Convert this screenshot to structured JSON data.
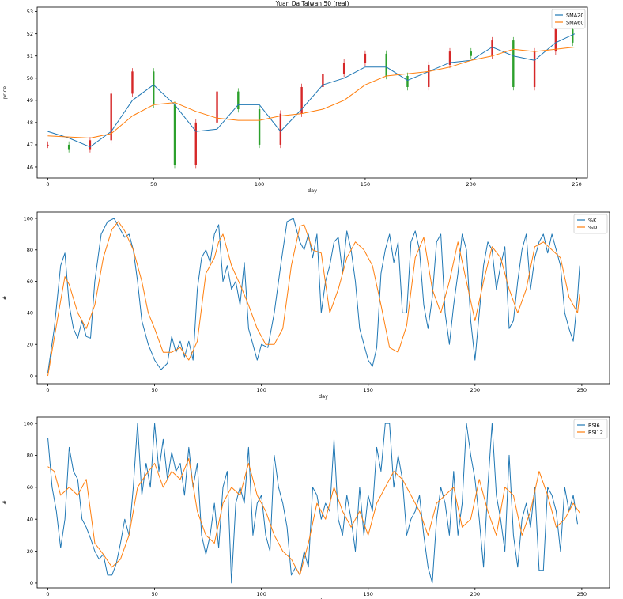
{
  "colors": {
    "series1": "#1f77b4",
    "series2": "#ff7f0e",
    "up": "#d62728",
    "down": "#2ca02c"
  },
  "chart_data": [
    {
      "type": "line",
      "name": "price-chart",
      "title": "Yuan Da Taiwan 50 (real)",
      "xlabel": "day",
      "ylabel": "price",
      "xlim": [
        -5,
        255
      ],
      "ylim": [
        45.5,
        53.2
      ],
      "xticks": [
        0,
        50,
        100,
        150,
        200,
        250
      ],
      "yticks": [
        46,
        47,
        48,
        49,
        50,
        51,
        52,
        53
      ],
      "legend": "top-right",
      "candles": {
        "x": [
          0,
          10,
          20,
          30,
          40,
          50,
          60,
          70,
          80,
          90,
          100,
          110,
          120,
          130,
          140,
          150,
          160,
          170,
          180,
          190,
          200,
          210,
          220,
          230,
          240,
          248
        ],
        "close": [
          47.0,
          46.8,
          47.2,
          49.3,
          50.3,
          48.8,
          46.1,
          48.0,
          49.4,
          48.6,
          47.0,
          48.4,
          49.6,
          50.2,
          50.7,
          51.1,
          50.1,
          49.6,
          50.6,
          51.2,
          51.0,
          51.7,
          49.6,
          51.2,
          52.2,
          51.6
        ]
      },
      "series": [
        {
          "name": "SMA20",
          "x": [
            0,
            10,
            20,
            30,
            40,
            50,
            60,
            70,
            80,
            90,
            100,
            110,
            120,
            130,
            140,
            150,
            160,
            170,
            180,
            190,
            200,
            210,
            220,
            230,
            240,
            249
          ],
          "values": [
            47.6,
            47.3,
            46.9,
            47.6,
            49.0,
            49.7,
            48.8,
            47.6,
            47.7,
            48.8,
            48.8,
            47.6,
            48.6,
            49.7,
            50.0,
            50.5,
            50.5,
            49.9,
            50.3,
            50.7,
            50.8,
            51.4,
            51.0,
            50.8,
            51.6,
            52.0
          ]
        },
        {
          "name": "SMA60",
          "x": [
            0,
            20,
            30,
            40,
            50,
            60,
            70,
            80,
            90,
            100,
            110,
            120,
            130,
            140,
            150,
            160,
            170,
            180,
            190,
            200,
            210,
            220,
            230,
            240,
            249
          ],
          "values": [
            47.4,
            47.3,
            47.5,
            48.3,
            48.8,
            48.9,
            48.5,
            48.2,
            48.1,
            48.1,
            48.3,
            48.4,
            48.6,
            49.0,
            49.7,
            50.1,
            50.2,
            50.3,
            50.5,
            50.8,
            51.0,
            51.3,
            51.2,
            51.3,
            51.4
          ]
        }
      ]
    },
    {
      "type": "line",
      "name": "kd-chart",
      "xlabel": "day",
      "ylabel": "#",
      "xlim": [
        -5,
        263
      ],
      "ylim": [
        -5,
        104
      ],
      "xticks": [
        0,
        50,
        100,
        150,
        200,
        250
      ],
      "yticks": [
        0,
        20,
        40,
        60,
        80,
        100
      ],
      "legend": "top-right",
      "series": [
        {
          "name": "%K",
          "x": [
            0,
            3,
            6,
            8,
            10,
            12,
            14,
            16,
            18,
            20,
            22,
            25,
            28,
            31,
            33,
            36,
            38,
            40,
            42,
            44,
            47,
            50,
            53,
            56,
            58,
            60,
            62,
            64,
            66,
            68,
            70,
            72,
            74,
            76,
            78,
            80,
            82,
            84,
            86,
            88,
            90,
            92,
            94,
            96,
            98,
            100,
            103,
            106,
            109,
            112,
            115,
            118,
            120,
            122,
            124,
            126,
            128,
            130,
            132,
            134,
            136,
            138,
            140,
            142,
            144,
            146,
            148,
            150,
            152,
            154,
            156,
            158,
            160,
            162,
            164,
            166,
            168,
            170,
            172,
            174,
            176,
            178,
            180,
            182,
            184,
            186,
            188,
            190,
            192,
            194,
            196,
            198,
            200,
            202,
            204,
            206,
            208,
            210,
            212,
            214,
            216,
            218,
            220,
            222,
            224,
            226,
            228,
            230,
            232,
            234,
            236,
            238,
            240,
            242,
            244,
            246,
            248,
            249
          ],
          "values": [
            2,
            30,
            70,
            78,
            45,
            30,
            24,
            35,
            25,
            24,
            60,
            90,
            98,
            100,
            95,
            88,
            90,
            80,
            60,
            35,
            20,
            10,
            4,
            8,
            25,
            15,
            22,
            12,
            22,
            10,
            55,
            75,
            80,
            72,
            90,
            96,
            60,
            70,
            55,
            60,
            45,
            72,
            30,
            20,
            10,
            20,
            18,
            40,
            70,
            98,
            100,
            85,
            80,
            90,
            75,
            90,
            40,
            60,
            70,
            85,
            88,
            65,
            92,
            80,
            60,
            30,
            20,
            10,
            6,
            18,
            65,
            80,
            90,
            72,
            85,
            40,
            40,
            85,
            92,
            80,
            45,
            30,
            50,
            85,
            90,
            40,
            20,
            45,
            65,
            90,
            80,
            35,
            10,
            40,
            70,
            85,
            80,
            55,
            70,
            82,
            30,
            35,
            60,
            80,
            90,
            55,
            75,
            85,
            90,
            78,
            90,
            80,
            70,
            40,
            30,
            22,
            50,
            70
          ]
        },
        {
          "name": "%D",
          "x": [
            0,
            5,
            8,
            10,
            14,
            18,
            22,
            26,
            30,
            33,
            36,
            40,
            44,
            47,
            50,
            54,
            58,
            62,
            66,
            70,
            74,
            78,
            80,
            82,
            86,
            90,
            94,
            98,
            102,
            106,
            110,
            114,
            118,
            120,
            124,
            128,
            132,
            136,
            140,
            144,
            148,
            152,
            156,
            160,
            164,
            168,
            172,
            176,
            180,
            184,
            188,
            192,
            196,
            200,
            204,
            208,
            212,
            216,
            220,
            224,
            228,
            232,
            236,
            240,
            244,
            248,
            249
          ],
          "values": [
            0,
            40,
            63,
            58,
            40,
            30,
            45,
            75,
            93,
            98,
            92,
            80,
            60,
            40,
            30,
            15,
            15,
            18,
            10,
            22,
            65,
            75,
            85,
            90,
            70,
            58,
            45,
            30,
            20,
            20,
            30,
            70,
            95,
            96,
            80,
            78,
            40,
            55,
            75,
            85,
            80,
            70,
            45,
            18,
            15,
            32,
            75,
            88,
            55,
            40,
            60,
            85,
            60,
            35,
            60,
            82,
            75,
            55,
            40,
            55,
            82,
            85,
            80,
            75,
            50,
            40,
            52
          ]
        }
      ]
    },
    {
      "type": "line",
      "name": "rsi-chart",
      "xlabel": "day",
      "ylabel": "#",
      "xlim": [
        -5,
        263
      ],
      "ylim": [
        -3,
        104
      ],
      "xticks": [
        0,
        50,
        100,
        150,
        200,
        250
      ],
      "yticks": [
        0,
        20,
        40,
        60,
        80,
        100
      ],
      "legend": "top-right",
      "series": [
        {
          "name": "RSI6",
          "x": [
            0,
            2,
            4,
            6,
            8,
            10,
            12,
            14,
            16,
            18,
            20,
            22,
            24,
            26,
            28,
            30,
            32,
            34,
            36,
            38,
            40,
            42,
            44,
            46,
            48,
            50,
            52,
            54,
            56,
            58,
            60,
            62,
            64,
            66,
            68,
            70,
            72,
            74,
            76,
            78,
            80,
            82,
            84,
            86,
            88,
            90,
            92,
            94,
            96,
            98,
            100,
            102,
            104,
            106,
            108,
            110,
            112,
            114,
            116,
            118,
            120,
            122,
            124,
            126,
            128,
            130,
            132,
            134,
            136,
            138,
            140,
            142,
            144,
            146,
            148,
            150,
            152,
            154,
            156,
            158,
            160,
            162,
            164,
            166,
            168,
            170,
            172,
            174,
            176,
            178,
            180,
            182,
            184,
            186,
            188,
            190,
            192,
            194,
            196,
            198,
            200,
            202,
            204,
            206,
            208,
            210,
            212,
            214,
            216,
            218,
            220,
            222,
            224,
            226,
            228,
            230,
            232,
            234,
            236,
            238,
            240,
            242,
            244,
            246,
            248
          ],
          "values": [
            91,
            60,
            45,
            22,
            40,
            85,
            70,
            65,
            40,
            35,
            28,
            20,
            15,
            18,
            5,
            5,
            12,
            25,
            40,
            30,
            60,
            100,
            55,
            75,
            60,
            100,
            70,
            90,
            65,
            82,
            70,
            75,
            55,
            85,
            60,
            75,
            30,
            18,
            30,
            50,
            22,
            60,
            70,
            0,
            50,
            60,
            50,
            85,
            30,
            50,
            55,
            30,
            20,
            80,
            60,
            50,
            35,
            5,
            10,
            5,
            20,
            10,
            60,
            55,
            40,
            50,
            45,
            90,
            40,
            30,
            55,
            40,
            20,
            60,
            30,
            55,
            45,
            85,
            70,
            100,
            100,
            60,
            80,
            65,
            30,
            40,
            45,
            55,
            30,
            10,
            0,
            40,
            60,
            50,
            30,
            70,
            30,
            50,
            100,
            80,
            65,
            40,
            10,
            60,
            100,
            55,
            40,
            20,
            80,
            30,
            10,
            40,
            50,
            35,
            60,
            8,
            8,
            60,
            55,
            45,
            20,
            60,
            45,
            55,
            37
          ]
        },
        {
          "name": "RSI12",
          "x": [
            0,
            3,
            6,
            10,
            14,
            18,
            22,
            26,
            30,
            34,
            38,
            42,
            46,
            50,
            54,
            58,
            62,
            66,
            70,
            74,
            78,
            82,
            86,
            90,
            94,
            98,
            102,
            106,
            110,
            114,
            118,
            122,
            126,
            130,
            134,
            138,
            142,
            146,
            150,
            154,
            158,
            162,
            166,
            170,
            174,
            178,
            182,
            186,
            190,
            194,
            198,
            202,
            206,
            210,
            214,
            218,
            222,
            226,
            230,
            234,
            238,
            242,
            246,
            249
          ],
          "values": [
            73,
            70,
            55,
            60,
            55,
            65,
            25,
            18,
            10,
            15,
            30,
            60,
            68,
            75,
            60,
            70,
            65,
            78,
            45,
            30,
            25,
            50,
            60,
            55,
            75,
            55,
            45,
            30,
            20,
            15,
            5,
            25,
            50,
            40,
            60,
            45,
            35,
            45,
            30,
            50,
            60,
            70,
            65,
            55,
            45,
            30,
            50,
            55,
            60,
            35,
            40,
            65,
            45,
            30,
            60,
            55,
            30,
            45,
            70,
            55,
            35,
            40,
            50,
            44
          ]
        }
      ]
    }
  ]
}
